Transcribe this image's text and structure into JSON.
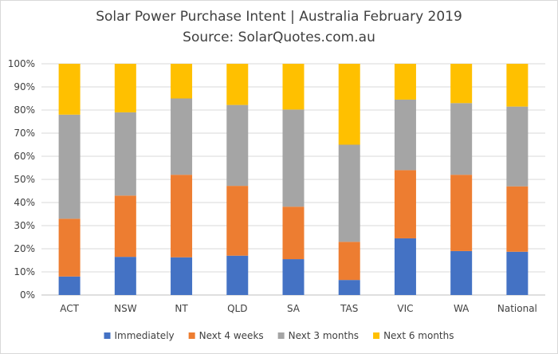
{
  "chart_data": {
    "type": "bar",
    "stacked": true,
    "title": "Solar Power Purchase Intent | Australia February 2019",
    "subtitle": "Source: SolarQuotes.com.au",
    "categories": [
      "ACT",
      "NSW",
      "NT",
      "QLD",
      "SA",
      "TAS",
      "VIC",
      "WA",
      "National"
    ],
    "y_ticks": [
      "0%",
      "10%",
      "20%",
      "30%",
      "40%",
      "50%",
      "60%",
      "70%",
      "80%",
      "90%",
      "100%"
    ],
    "ylim": [
      0,
      100
    ],
    "grid": true,
    "legend_position": "bottom",
    "series": [
      {
        "name": "Immediately",
        "color": "#4472c4",
        "values": [
          8,
          16.5,
          16.3,
          17,
          15.5,
          6.5,
          24.5,
          19,
          18.7
        ]
      },
      {
        "name": "Next 4 weeks",
        "color": "#ed7d31",
        "values": [
          25,
          26.5,
          35.7,
          30.2,
          22.7,
          16.5,
          29.5,
          33,
          28.3
        ]
      },
      {
        "name": "Next 3 months",
        "color": "#a5a5a5",
        "values": [
          45,
          36,
          33,
          35,
          42,
          42,
          30.5,
          31,
          34.5
        ]
      },
      {
        "name": "Next 6 months",
        "color": "#ffc000",
        "values": [
          22,
          21,
          15,
          17.8,
          19.8,
          35,
          15.5,
          17,
          18.5
        ]
      }
    ]
  }
}
